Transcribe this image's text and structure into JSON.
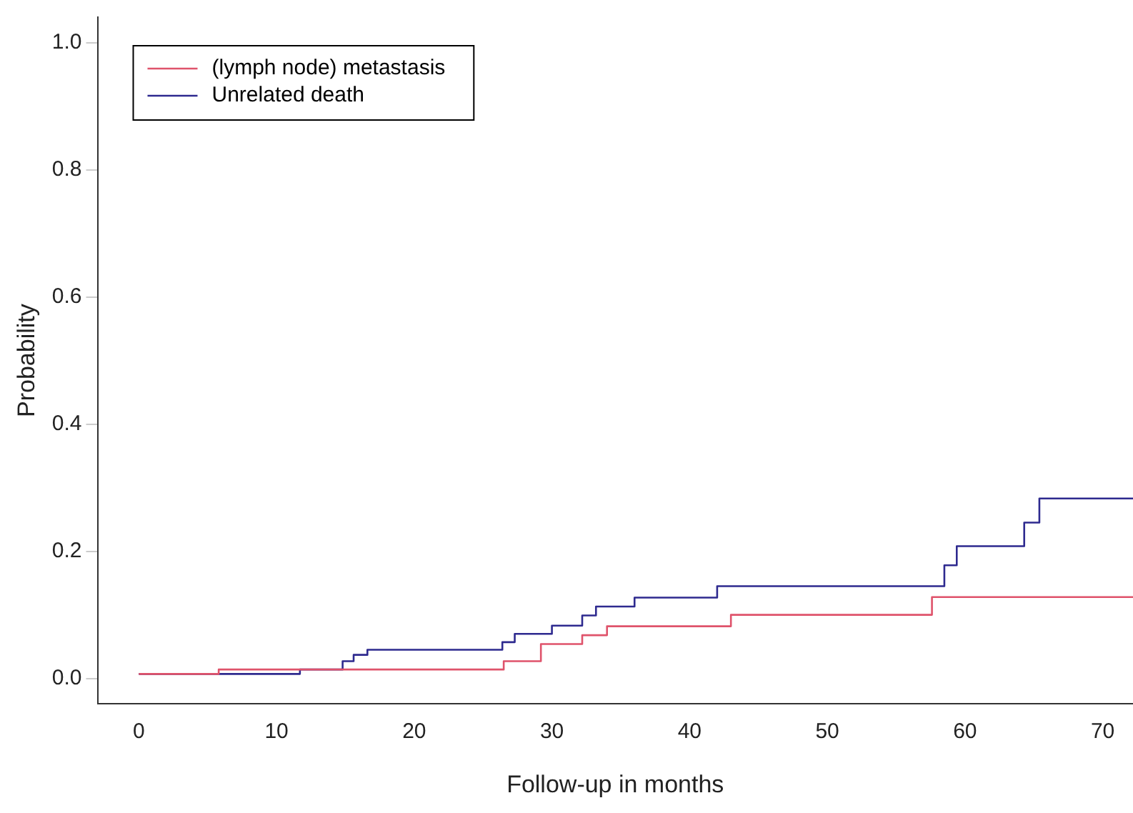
{
  "chart_data": {
    "type": "step",
    "xlabel": "Follow-up in months",
    "ylabel": "Probability",
    "xlim": [
      -3,
      72.2
    ],
    "ylim": [
      -0.04,
      1.04
    ],
    "xticks": [
      0,
      10,
      20,
      30,
      40,
      50,
      60,
      70
    ],
    "yticks": [
      {
        "value": 0,
        "label": "0.0"
      },
      0.2,
      0.4,
      0.6,
      0.8,
      {
        "value": 1,
        "label": "1.0"
      }
    ],
    "grid": false,
    "legend": "top left",
    "marker": "none",
    "line_style": "solid",
    "series": [
      {
        "name": "(lymph node) metastasis",
        "color": "#df536b",
        "x": [
          0,
          5.8,
          26.5,
          29.2,
          32.2,
          34,
          43,
          57.6,
          72.2
        ],
        "values": [
          0.007,
          0.014,
          0.027,
          0.054,
          0.068,
          0.082,
          0.1,
          0.128,
          0.128
        ]
      },
      {
        "name": "Unrelated death",
        "color": "#2e2a8f",
        "x": [
          0,
          11.7,
          14.8,
          15.6,
          16.6,
          26.4,
          27.3,
          30,
          32.2,
          33.2,
          36,
          42,
          58.5,
          59.4,
          64.3,
          65.4,
          72.2
        ],
        "values": [
          0.007,
          0.014,
          0.027,
          0.037,
          0.045,
          0.057,
          0.07,
          0.083,
          0.099,
          0.113,
          0.127,
          0.145,
          0.178,
          0.208,
          0.245,
          0.283,
          0.283
        ]
      }
    ]
  }
}
